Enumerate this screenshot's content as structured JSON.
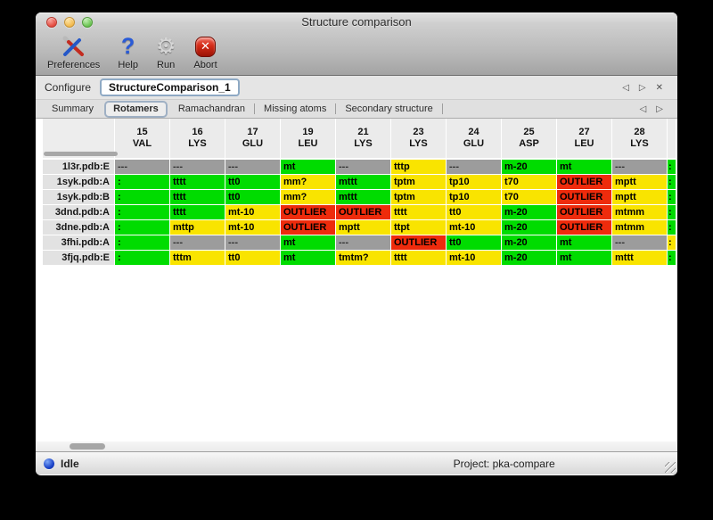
{
  "window": {
    "title": "Structure comparison"
  },
  "toolbar": {
    "buttons": [
      {
        "label": "Preferences",
        "icon": "tools-icon"
      },
      {
        "label": "Help",
        "icon": "question-icon"
      },
      {
        "label": "Run",
        "icon": "gear-icon"
      },
      {
        "label": "Abort",
        "icon": "abort-icon"
      }
    ],
    "abort_glyph": "✕",
    "help_glyph": "?",
    "gear_glyph": "⚙"
  },
  "configure": {
    "label": "Configure",
    "value": "StructureComparison_1",
    "nav": [
      "◁",
      "▷",
      "✕"
    ]
  },
  "tabs": {
    "items": [
      "Summary",
      "Rotamers",
      "Ramachandran",
      "Missing atoms",
      "Secondary structure"
    ],
    "selected": "Rotamers",
    "nav": [
      "◁",
      "▷"
    ]
  },
  "colors": {
    "green": "#00dc00",
    "yellow": "#f9e400",
    "red": "#ee2b0c",
    "gray": "#9c9c9c"
  },
  "table": {
    "columns": [
      {
        "num": "15",
        "res": "VAL"
      },
      {
        "num": "16",
        "res": "LYS"
      },
      {
        "num": "17",
        "res": "GLU"
      },
      {
        "num": "19",
        "res": "LEU"
      },
      {
        "num": "21",
        "res": "LYS"
      },
      {
        "num": "23",
        "res": "LYS"
      },
      {
        "num": "24",
        "res": "GLU"
      },
      {
        "num": "25",
        "res": "ASP"
      },
      {
        "num": "27",
        "res": "LEU"
      },
      {
        "num": "28",
        "res": "LYS"
      }
    ],
    "rows": [
      {
        "label": "1l3r.pdb:E",
        "cells": [
          {
            "text": "---",
            "color": "gray"
          },
          {
            "text": "---",
            "color": "gray"
          },
          {
            "text": "---",
            "color": "gray"
          },
          {
            "text": "mt",
            "color": "green"
          },
          {
            "text": "---",
            "color": "gray"
          },
          {
            "text": "tttp",
            "color": "yellow"
          },
          {
            "text": "---",
            "color": "gray"
          },
          {
            "text": "m-20",
            "color": "green"
          },
          {
            "text": "mt",
            "color": "green"
          },
          {
            "text": "---",
            "color": "gray"
          }
        ],
        "clipped": {
          "text": ":",
          "color": "green"
        }
      },
      {
        "label": "1syk.pdb:A",
        "cells": [
          {
            "text": ":",
            "color": "green"
          },
          {
            "text": "tttt",
            "color": "green"
          },
          {
            "text": "tt0",
            "color": "green"
          },
          {
            "text": "mm?",
            "color": "yellow"
          },
          {
            "text": "mttt",
            "color": "green"
          },
          {
            "text": "tptm",
            "color": "yellow"
          },
          {
            "text": "tp10",
            "color": "yellow"
          },
          {
            "text": "t70",
            "color": "yellow"
          },
          {
            "text": "OUTLIER",
            "color": "red"
          },
          {
            "text": "mptt",
            "color": "yellow"
          }
        ],
        "clipped": {
          "text": ":",
          "color": "green"
        }
      },
      {
        "label": "1syk.pdb:B",
        "cells": [
          {
            "text": ":",
            "color": "green"
          },
          {
            "text": "tttt",
            "color": "green"
          },
          {
            "text": "tt0",
            "color": "green"
          },
          {
            "text": "mm?",
            "color": "yellow"
          },
          {
            "text": "mttt",
            "color": "green"
          },
          {
            "text": "tptm",
            "color": "yellow"
          },
          {
            "text": "tp10",
            "color": "yellow"
          },
          {
            "text": "t70",
            "color": "yellow"
          },
          {
            "text": "OUTLIER",
            "color": "red"
          },
          {
            "text": "mptt",
            "color": "yellow"
          }
        ],
        "clipped": {
          "text": ":",
          "color": "green"
        }
      },
      {
        "label": "3dnd.pdb:A",
        "cells": [
          {
            "text": ":",
            "color": "green"
          },
          {
            "text": "tttt",
            "color": "green"
          },
          {
            "text": "mt-10",
            "color": "yellow"
          },
          {
            "text": "OUTLIER",
            "color": "red"
          },
          {
            "text": "OUTLIER",
            "color": "red"
          },
          {
            "text": "tttt",
            "color": "yellow"
          },
          {
            "text": "tt0",
            "color": "yellow"
          },
          {
            "text": "m-20",
            "color": "green"
          },
          {
            "text": "OUTLIER",
            "color": "red"
          },
          {
            "text": "mtmm",
            "color": "yellow"
          }
        ],
        "clipped": {
          "text": ":",
          "color": "green"
        }
      },
      {
        "label": "3dne.pdb:A",
        "cells": [
          {
            "text": ":",
            "color": "green"
          },
          {
            "text": "mttp",
            "color": "yellow"
          },
          {
            "text": "mt-10",
            "color": "yellow"
          },
          {
            "text": "OUTLIER",
            "color": "red"
          },
          {
            "text": "mptt",
            "color": "yellow"
          },
          {
            "text": "ttpt",
            "color": "yellow"
          },
          {
            "text": "mt-10",
            "color": "yellow"
          },
          {
            "text": "m-20",
            "color": "green"
          },
          {
            "text": "OUTLIER",
            "color": "red"
          },
          {
            "text": "mtmm",
            "color": "yellow"
          }
        ],
        "clipped": {
          "text": ":",
          "color": "green"
        }
      },
      {
        "label": "3fhi.pdb:A",
        "cells": [
          {
            "text": ":",
            "color": "green"
          },
          {
            "text": "---",
            "color": "gray"
          },
          {
            "text": "---",
            "color": "gray"
          },
          {
            "text": "mt",
            "color": "green"
          },
          {
            "text": "---",
            "color": "gray"
          },
          {
            "text": "OUTLIER",
            "color": "red"
          },
          {
            "text": "tt0",
            "color": "green"
          },
          {
            "text": "m-20",
            "color": "green"
          },
          {
            "text": "mt",
            "color": "green"
          },
          {
            "text": "---",
            "color": "gray"
          }
        ],
        "clipped": {
          "text": ":",
          "color": "yellow"
        }
      },
      {
        "label": "3fjq.pdb:E",
        "cells": [
          {
            "text": ":",
            "color": "green"
          },
          {
            "text": "tttm",
            "color": "yellow"
          },
          {
            "text": "tt0",
            "color": "yellow"
          },
          {
            "text": "mt",
            "color": "green"
          },
          {
            "text": "tmtm?",
            "color": "yellow"
          },
          {
            "text": "tttt",
            "color": "yellow"
          },
          {
            "text": "mt-10",
            "color": "yellow"
          },
          {
            "text": "m-20",
            "color": "green"
          },
          {
            "text": "mt",
            "color": "green"
          },
          {
            "text": "mttt",
            "color": "yellow"
          }
        ],
        "clipped": {
          "text": ":",
          "color": "green"
        }
      }
    ]
  },
  "statusbar": {
    "status": "Idle",
    "project": "Project: pka-compare"
  }
}
